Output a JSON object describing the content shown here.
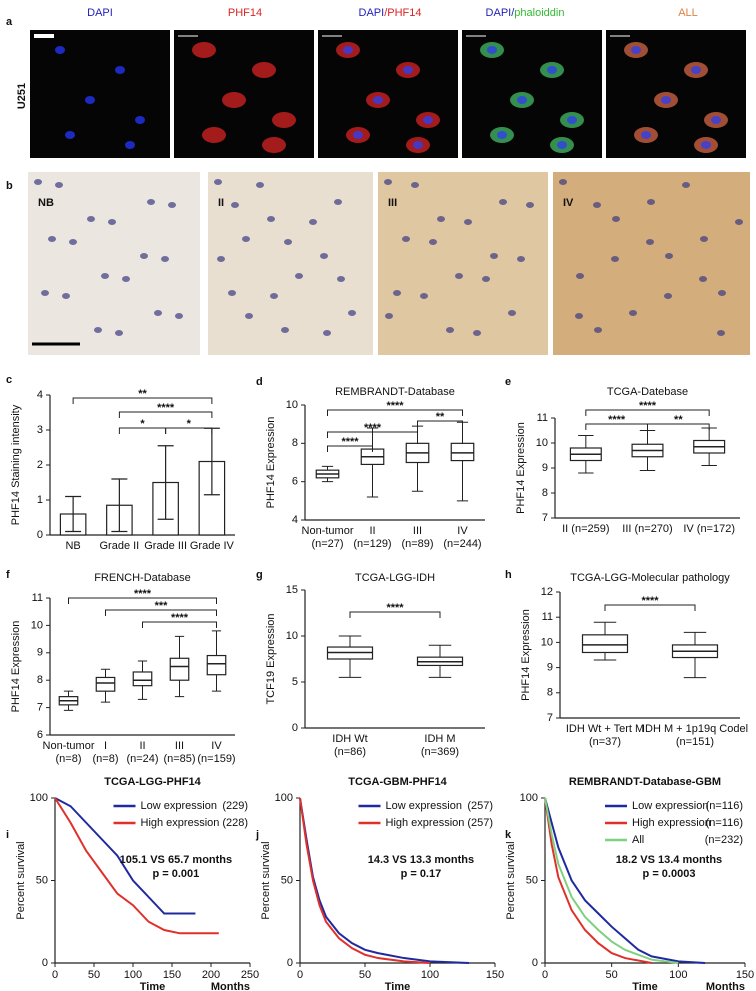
{
  "figure": {
    "a": {
      "label": "a",
      "cell_line": "U251",
      "columns": [
        [
          "DAPI"
        ],
        [
          "PHF14"
        ],
        [
          "DAPI",
          "/PHF14"
        ],
        [
          "DAPI/",
          "phaloiddin"
        ],
        [
          "ALL"
        ]
      ]
    },
    "b": {
      "label": "b",
      "panels": [
        "NB",
        "II",
        "III",
        "IV"
      ]
    }
  },
  "chart_data": [
    {
      "type": "bar",
      "label": "c",
      "ylabel": "PHF14 Staining intensity",
      "categories": [
        "NB",
        "Grade II",
        "Grade III",
        "Grade IV"
      ],
      "values": [
        0.6,
        0.85,
        1.5,
        2.1
      ],
      "errors": [
        0.5,
        0.75,
        1.05,
        0.95
      ],
      "ylim": [
        0,
        4
      ],
      "yticks": [
        0,
        1,
        2,
        3,
        4
      ],
      "significance": [
        "**",
        "****",
        "*",
        "*"
      ]
    },
    {
      "type": "box",
      "label": "d",
      "title": "REMBRANDT-Database",
      "ylabel": "PHF14 Expression",
      "categories": [
        "Non-tumor",
        "II",
        "III",
        "IV"
      ],
      "n_labels": [
        "(n=27)",
        "(n=129)",
        "(n=89)",
        "(n=244)"
      ],
      "values": [
        {
          "min": 6.0,
          "q1": 6.2,
          "median": 6.4,
          "q3": 6.6,
          "max": 6.8
        },
        {
          "min": 5.2,
          "q1": 6.9,
          "median": 7.3,
          "q3": 7.7,
          "max": 8.8
        },
        {
          "min": 5.5,
          "q1": 7.0,
          "median": 7.5,
          "q3": 8.0,
          "max": 8.9
        },
        {
          "min": 5.0,
          "q1": 7.1,
          "median": 7.5,
          "q3": 8.0,
          "max": 9.1
        }
      ],
      "ylim": [
        4,
        10
      ],
      "yticks": [
        4,
        6,
        8,
        10
      ],
      "significance": [
        "****",
        "**",
        "****",
        "****"
      ]
    },
    {
      "type": "box",
      "label": "e",
      "title": "TCGA-Datebase",
      "ylabel": "PHF14 Expression",
      "categories": [
        "II (n=259)",
        "III (n=270)",
        "IV (n=172)"
      ],
      "values": [
        {
          "min": 8.8,
          "q1": 9.3,
          "median": 9.55,
          "q3": 9.8,
          "max": 10.3
        },
        {
          "min": 8.9,
          "q1": 9.45,
          "median": 9.7,
          "q3": 9.95,
          "max": 10.5
        },
        {
          "min": 9.1,
          "q1": 9.6,
          "median": 9.85,
          "q3": 10.1,
          "max": 10.6
        }
      ],
      "ylim": [
        7,
        11
      ],
      "yticks": [
        7,
        8,
        9,
        10,
        11
      ],
      "significance": [
        "****",
        "****",
        "**"
      ]
    },
    {
      "type": "box",
      "label": "f",
      "title": "FRENCH-Database",
      "ylabel": "PHF14 Expression",
      "categories": [
        "Non-tumor",
        "I",
        "II",
        "III",
        "IV"
      ],
      "n_labels": [
        "(n=8)",
        "(n=8)",
        "(n=24)",
        "(n=85)",
        "(n=159)"
      ],
      "values": [
        {
          "min": 6.9,
          "q1": 7.1,
          "median": 7.25,
          "q3": 7.4,
          "max": 7.6
        },
        {
          "min": 7.2,
          "q1": 7.6,
          "median": 7.9,
          "q3": 8.1,
          "max": 8.4
        },
        {
          "min": 7.3,
          "q1": 7.8,
          "median": 8.0,
          "q3": 8.3,
          "max": 8.7
        },
        {
          "min": 7.4,
          "q1": 8.0,
          "median": 8.5,
          "q3": 8.8,
          "max": 9.6
        },
        {
          "min": 7.6,
          "q1": 8.2,
          "median": 8.6,
          "q3": 8.9,
          "max": 9.8
        }
      ],
      "ylim": [
        6,
        11
      ],
      "yticks": [
        6,
        7,
        8,
        9,
        10,
        11
      ],
      "significance": [
        "****",
        "***",
        "****"
      ]
    },
    {
      "type": "box",
      "label": "g",
      "title": "TCGA-LGG-IDH",
      "ylabel": "TCF19 Expression",
      "categories": [
        "IDH Wt",
        "IDH M"
      ],
      "n_labels": [
        "(n=86)",
        "(n=369)"
      ],
      "values": [
        {
          "min": 5.5,
          "q1": 7.5,
          "median": 8.2,
          "q3": 8.8,
          "max": 10
        },
        {
          "min": 5.5,
          "q1": 6.8,
          "median": 7.2,
          "q3": 7.7,
          "max": 9.0
        }
      ],
      "ylim": [
        0,
        15
      ],
      "yticks": [
        0,
        5,
        10,
        15
      ],
      "significance": [
        "****"
      ]
    },
    {
      "type": "box",
      "label": "h",
      "title": "TCGA-LGG-Molecular pathology",
      "ylabel": "PHF14 Expression",
      "categories": [
        "IDH Wt + Tert M",
        "IDH M + 1p19q Codel"
      ],
      "n_labels": [
        "(n=37)",
        "(n=151)"
      ],
      "values": [
        {
          "min": 9.3,
          "q1": 9.6,
          "median": 9.9,
          "q3": 10.3,
          "max": 10.8
        },
        {
          "min": 8.6,
          "q1": 9.4,
          "median": 9.65,
          "q3": 9.9,
          "max": 10.4
        }
      ],
      "ylim": [
        7,
        12
      ],
      "yticks": [
        7,
        8,
        9,
        10,
        11,
        12
      ],
      "significance": [
        "****"
      ]
    },
    {
      "type": "line",
      "label": "i",
      "title": "TCGA-LGG-PHF14",
      "ylabel": "Percent survival",
      "xlabel": "Time",
      "xunit": "Months",
      "xlim": [
        0,
        250
      ],
      "xticks": [
        0,
        50,
        100,
        150,
        200,
        250
      ],
      "ylim": [
        0,
        100
      ],
      "yticks": [
        0,
        50,
        100
      ],
      "series": [
        {
          "name": "Low expression",
          "count": "(229)",
          "color": "#1f2a9e",
          "x": [
            0,
            20,
            40,
            60,
            80,
            100,
            120,
            140,
            160,
            180
          ],
          "values": [
            100,
            95,
            85,
            75,
            65,
            50,
            40,
            30,
            30,
            30
          ]
        },
        {
          "name": "High expression",
          "count": "(228)",
          "color": "#e0302a",
          "x": [
            0,
            20,
            40,
            60,
            80,
            100,
            120,
            140,
            160,
            210
          ],
          "values": [
            100,
            85,
            68,
            55,
            42,
            35,
            25,
            20,
            18,
            18
          ]
        }
      ],
      "annotations": [
        "105.1 VS 65.7 months",
        "p = 0.001"
      ]
    },
    {
      "type": "line",
      "label": "j",
      "title": "TCGA-GBM-PHF14",
      "ylabel": "Percent survival",
      "xlabel": "Time",
      "xlim": [
        0,
        150
      ],
      "xticks": [
        0,
        50,
        100,
        150
      ],
      "ylim": [
        0,
        100
      ],
      "yticks": [
        0,
        50,
        100
      ],
      "series": [
        {
          "name": "Low expression",
          "count": "(257)",
          "color": "#1f2a9e",
          "x": [
            0,
            5,
            10,
            15,
            20,
            30,
            40,
            50,
            60,
            80,
            100,
            130
          ],
          "values": [
            100,
            75,
            52,
            38,
            28,
            18,
            12,
            8,
            6,
            3,
            1,
            0
          ]
        },
        {
          "name": "High expression",
          "count": "(257)",
          "color": "#e0302a",
          "x": [
            0,
            5,
            10,
            15,
            20,
            30,
            40,
            50,
            60,
            80,
            100
          ],
          "values": [
            100,
            72,
            50,
            35,
            25,
            15,
            9,
            5,
            3,
            1,
            0
          ]
        }
      ],
      "annotations": [
        "14.3 VS 13.3 months",
        "p = 0.17"
      ]
    },
    {
      "type": "line",
      "label": "k",
      "title": "REMBRANDT-Database-GBM",
      "ylabel": "Percent survival",
      "xlabel": "Time",
      "xunit": "Months",
      "xlim": [
        0,
        150
      ],
      "xticks": [
        0,
        50,
        100,
        150
      ],
      "ylim": [
        0,
        100
      ],
      "yticks": [
        0,
        50,
        100
      ],
      "series": [
        {
          "name": "Low expression",
          "count": "(n=116)",
          "color": "#1f2a9e",
          "x": [
            0,
            5,
            10,
            20,
            30,
            40,
            50,
            60,
            70,
            80,
            100,
            120
          ],
          "values": [
            100,
            85,
            70,
            50,
            38,
            30,
            22,
            15,
            8,
            4,
            1,
            0
          ]
        },
        {
          "name": "High expression",
          "count": "(n=116)",
          "color": "#e0302a",
          "x": [
            0,
            5,
            10,
            20,
            30,
            40,
            50,
            60,
            80
          ],
          "values": [
            100,
            72,
            52,
            32,
            20,
            12,
            6,
            3,
            0
          ]
        },
        {
          "name": "All",
          "count": "(n=232)",
          "color": "#7fd07f",
          "x": [
            0,
            5,
            10,
            20,
            30,
            40,
            50,
            60,
            80,
            100
          ],
          "values": [
            100,
            78,
            60,
            40,
            28,
            20,
            13,
            8,
            2,
            0
          ]
        }
      ],
      "annotations": [
        "18.2 VS 13.4 months",
        "p = 0.0003"
      ]
    }
  ]
}
